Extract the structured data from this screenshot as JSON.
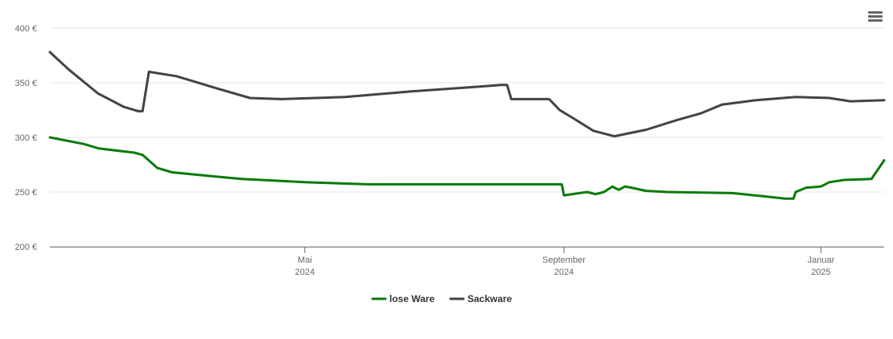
{
  "chart_data": {
    "type": "line",
    "title": "",
    "xlabel": "",
    "ylabel": "",
    "x_range": [
      "2024-01-01",
      "2025-01-31"
    ],
    "ylim": [
      200,
      400
    ],
    "yticks": [
      200,
      250,
      300,
      350,
      400
    ],
    "ytick_labels": [
      "200 €",
      "250 €",
      "300 €",
      "350 €",
      "400 €"
    ],
    "xticks": [
      {
        "date": "2024-05-01",
        "label": "Mai",
        "sublabel": "2024"
      },
      {
        "date": "2024-09-01",
        "label": "September",
        "sublabel": "2024"
      },
      {
        "date": "2025-01-01",
        "label": "Januar",
        "sublabel": "2025"
      }
    ],
    "grid": true,
    "legend_position": "bottom-center",
    "series": [
      {
        "name": "lose Ware",
        "color": "#0a7a0a",
        "points": [
          [
            "2024-01-01",
            300
          ],
          [
            "2024-01-17",
            294
          ],
          [
            "2024-01-24",
            290
          ],
          [
            "2024-02-01",
            288
          ],
          [
            "2024-02-10",
            286
          ],
          [
            "2024-02-14",
            284
          ],
          [
            "2024-02-21",
            272
          ],
          [
            "2024-02-28",
            268
          ],
          [
            "2024-03-15",
            265
          ],
          [
            "2024-04-01",
            262
          ],
          [
            "2024-05-01",
            259
          ],
          [
            "2024-06-01",
            257
          ],
          [
            "2024-07-01",
            257
          ],
          [
            "2024-08-01",
            257
          ],
          [
            "2024-08-31",
            257
          ],
          [
            "2024-09-01",
            247
          ],
          [
            "2024-09-05",
            248
          ],
          [
            "2024-09-12",
            250
          ],
          [
            "2024-09-16",
            248
          ],
          [
            "2024-09-20",
            250
          ],
          [
            "2024-09-24",
            255
          ],
          [
            "2024-09-27",
            252
          ],
          [
            "2024-09-30",
            255
          ],
          [
            "2024-10-03",
            254
          ],
          [
            "2024-10-10",
            251
          ],
          [
            "2024-10-20",
            250
          ],
          [
            "2024-11-20",
            249
          ],
          [
            "2024-12-05",
            246
          ],
          [
            "2024-12-15",
            244
          ],
          [
            "2024-12-19",
            244
          ],
          [
            "2024-12-20",
            250
          ],
          [
            "2024-12-25",
            254
          ],
          [
            "2025-01-01",
            255
          ],
          [
            "2025-01-05",
            259
          ],
          [
            "2025-01-12",
            261
          ],
          [
            "2025-01-25",
            262
          ],
          [
            "2025-01-31",
            279
          ]
        ]
      },
      {
        "name": "Sackware",
        "color": "#434348",
        "points": [
          [
            "2024-01-01",
            378
          ],
          [
            "2024-01-10",
            362
          ],
          [
            "2024-01-24",
            340
          ],
          [
            "2024-02-05",
            328
          ],
          [
            "2024-02-12",
            324
          ],
          [
            "2024-02-14",
            324
          ],
          [
            "2024-02-17",
            360
          ],
          [
            "2024-03-01",
            356
          ],
          [
            "2024-03-20",
            345
          ],
          [
            "2024-04-05",
            336
          ],
          [
            "2024-04-20",
            335
          ],
          [
            "2024-05-20",
            337
          ],
          [
            "2024-06-20",
            342
          ],
          [
            "2024-07-20",
            346
          ],
          [
            "2024-08-02",
            348
          ],
          [
            "2024-08-05",
            348
          ],
          [
            "2024-08-07",
            335
          ],
          [
            "2024-08-25",
            335
          ],
          [
            "2024-08-30",
            325
          ],
          [
            "2024-09-05",
            318
          ],
          [
            "2024-09-15",
            306
          ],
          [
            "2024-09-25",
            301
          ],
          [
            "2024-10-10",
            307
          ],
          [
            "2024-10-25",
            316
          ],
          [
            "2024-11-05",
            322
          ],
          [
            "2024-11-15",
            330
          ],
          [
            "2024-12-01",
            334
          ],
          [
            "2024-12-20",
            337
          ],
          [
            "2025-01-05",
            336
          ],
          [
            "2025-01-15",
            333
          ],
          [
            "2025-01-31",
            334
          ]
        ]
      }
    ]
  },
  "legend": [
    {
      "label": "lose Ware",
      "color": "#0a7a0a"
    },
    {
      "label": "Sackware",
      "color": "#434348"
    }
  ],
  "menu": {
    "icon": "hamburger-menu-icon"
  }
}
